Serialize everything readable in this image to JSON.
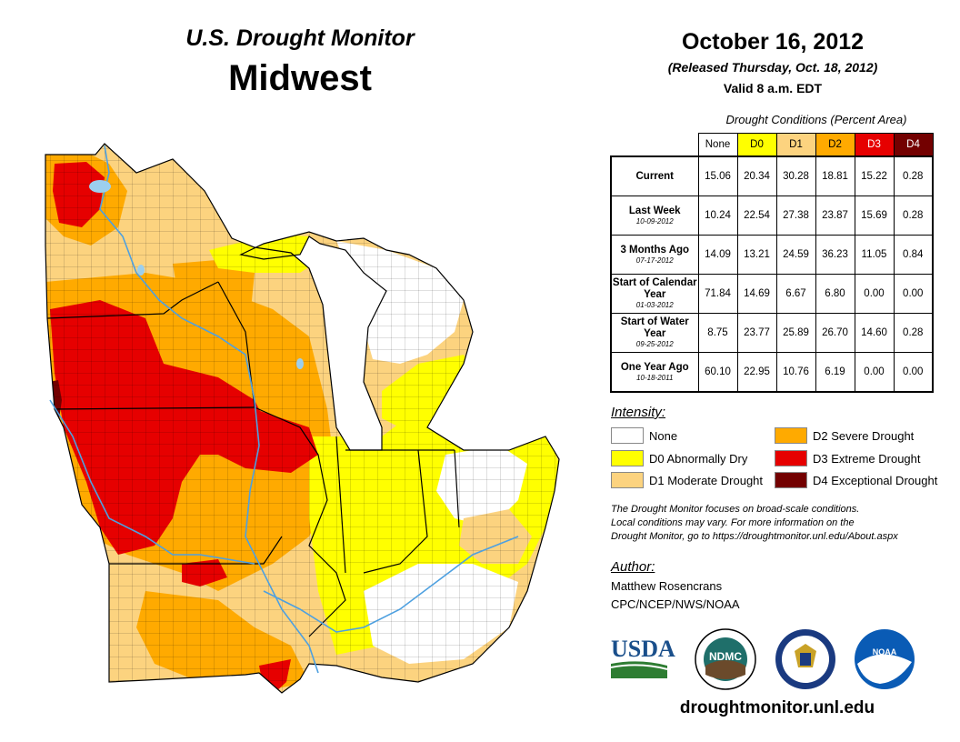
{
  "header": {
    "subtitle": "U.S. Drought Monitor",
    "region": "Midwest"
  },
  "dates": {
    "map_date": "October 16, 2012",
    "released": "(Released Thursday, Oct. 18, 2012)",
    "valid": "Valid 8 a.m. EDT"
  },
  "table": {
    "caption": "Drought Conditions (Percent Area)",
    "columns": [
      "None",
      "D0",
      "D1",
      "D2",
      "D3",
      "D4"
    ],
    "rows": [
      {
        "label": "Current",
        "date": "",
        "values": [
          "15.06",
          "20.34",
          "30.28",
          "18.81",
          "15.22",
          "0.28"
        ]
      },
      {
        "label": "Last Week",
        "date": "10-09-2012",
        "values": [
          "10.24",
          "22.54",
          "27.38",
          "23.87",
          "15.69",
          "0.28"
        ]
      },
      {
        "label": "3 Months Ago",
        "date": "07-17-2012",
        "values": [
          "14.09",
          "13.21",
          "24.59",
          "36.23",
          "11.05",
          "0.84"
        ]
      },
      {
        "label": "Start of Calendar Year",
        "date": "01-03-2012",
        "values": [
          "71.84",
          "14.69",
          "6.67",
          "6.80",
          "0.00",
          "0.00"
        ]
      },
      {
        "label": "Start of Water Year",
        "date": "09-25-2012",
        "values": [
          "8.75",
          "23.77",
          "25.89",
          "26.70",
          "14.60",
          "0.28"
        ]
      },
      {
        "label": "One Year Ago",
        "date": "10-18-2011",
        "values": [
          "60.10",
          "22.95",
          "10.76",
          "6.19",
          "0.00",
          "0.00"
        ]
      }
    ]
  },
  "legend": {
    "title": "Intensity:",
    "items": [
      {
        "label": "None",
        "color": "#ffffff"
      },
      {
        "label": "D0 Abnormally Dry",
        "color": "#ffff00"
      },
      {
        "label": "D1 Moderate Drought",
        "color": "#fcd37f"
      },
      {
        "label": "D2 Severe Drought",
        "color": "#ffaa00"
      },
      {
        "label": "D3 Extreme Drought",
        "color": "#e60000"
      },
      {
        "label": "D4 Exceptional Drought",
        "color": "#730000"
      }
    ]
  },
  "colors": {
    "none": "#ffffff",
    "d0": "#ffff00",
    "d1": "#fcd37f",
    "d2": "#ffaa00",
    "d3": "#e60000",
    "d4": "#730000",
    "water": "#4ea0e0",
    "lake": "#9ccfee",
    "header_none": "#ffffff",
    "header_d0": "#ffff00",
    "header_d1": "#fcd37f",
    "header_d2": "#ffaa00",
    "header_d3": "#e60000",
    "header_d4": "#730000"
  },
  "note": {
    "line1": "The Drought Monitor focuses on broad-scale conditions.",
    "line2": "Local conditions may vary. For more information on the",
    "line3": "Drought Monitor, go to https://droughtmonitor.unl.edu/About.aspx"
  },
  "author": {
    "title": "Author:",
    "name": "Matthew Rosencrans",
    "org": "CPC/NCEP/NWS/NOAA"
  },
  "logos": {
    "usda": "USDA",
    "ndmc": "NDMC",
    "noaa": "NOAA"
  },
  "footer": {
    "url": "droughtmonitor.unl.edu"
  }
}
